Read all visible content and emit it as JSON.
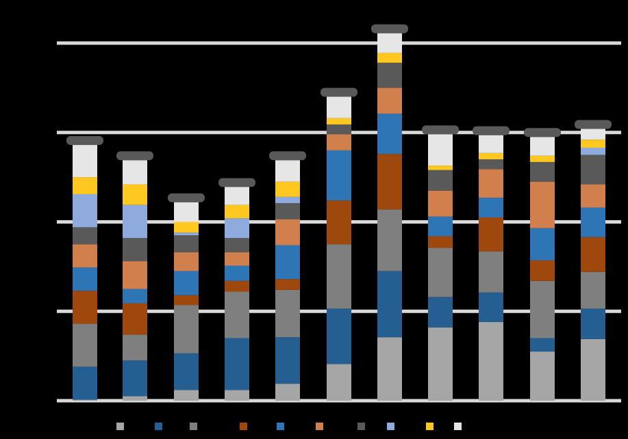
{
  "chart_data": {
    "type": "bar",
    "stacked": true,
    "categories": [
      "",
      "",
      "",
      "",
      "",
      "",
      "",
      "",
      "",
      "",
      ""
    ],
    "title": "",
    "xlabel": "",
    "ylabel": "",
    "ylim": [
      0,
      4
    ],
    "gridlines": [
      0,
      1,
      2,
      3,
      4
    ],
    "grid": true,
    "legend_position": "bottom",
    "series": [
      {
        "color": "#A6A6A6",
        "values": [
          0.01,
          0.05,
          0.12,
          0.12,
          0.19,
          0.41,
          0.71,
          0.82,
          0.88,
          0.55,
          0.69
        ]
      },
      {
        "color": "#255E91",
        "values": [
          0.37,
          0.4,
          0.41,
          0.58,
          0.52,
          0.62,
          0.74,
          0.34,
          0.33,
          0.15,
          0.34
        ]
      },
      {
        "color": "#7F7F7F",
        "values": [
          0.48,
          0.29,
          0.54,
          0.52,
          0.53,
          0.72,
          0.69,
          0.55,
          0.46,
          0.64,
          0.41
        ]
      },
      {
        "color": "#9E480E",
        "values": [
          0.37,
          0.35,
          0.11,
          0.12,
          0.12,
          0.49,
          0.62,
          0.13,
          0.38,
          0.23,
          0.39
        ]
      },
      {
        "color": "#2E75B6",
        "values": [
          0.26,
          0.16,
          0.27,
          0.17,
          0.38,
          0.56,
          0.45,
          0.22,
          0.22,
          0.36,
          0.33
        ]
      },
      {
        "color": "#D27F4E",
        "values": [
          0.26,
          0.31,
          0.21,
          0.15,
          0.29,
          0.18,
          0.29,
          0.29,
          0.32,
          0.52,
          0.26
        ]
      },
      {
        "color": "#595959",
        "values": [
          0.19,
          0.26,
          0.19,
          0.16,
          0.18,
          0.11,
          0.28,
          0.23,
          0.11,
          0.22,
          0.33
        ]
      },
      {
        "color": "#8FAADC",
        "values": [
          0.37,
          0.37,
          0.03,
          0.22,
          0.07,
          0.0,
          0.0,
          0.0,
          0.0,
          0.0,
          0.08
        ]
      },
      {
        "color": "#FFC820",
        "values": [
          0.19,
          0.23,
          0.12,
          0.15,
          0.17,
          0.07,
          0.11,
          0.05,
          0.07,
          0.07,
          0.09
        ]
      },
      {
        "color": "#E7E6E6",
        "values": [
          0.36,
          0.27,
          0.22,
          0.2,
          0.24,
          0.24,
          0.22,
          0.35,
          0.2,
          0.21,
          0.12
        ]
      }
    ],
    "data_labels": [
      "",
      "",
      "",
      "",
      "",
      "",
      "",
      "",
      "",
      "",
      ""
    ]
  }
}
